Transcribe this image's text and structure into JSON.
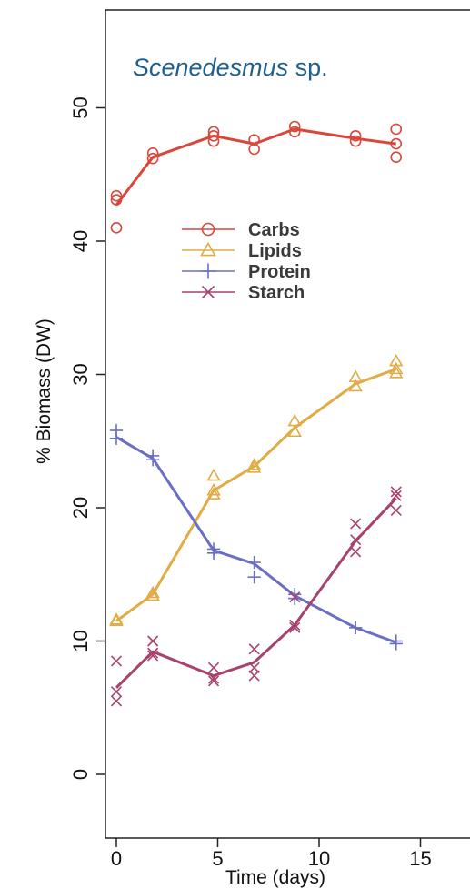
{
  "chart_data": {
    "type": "line",
    "title_species": "Scenedesmus",
    "title_suffix": " sp.",
    "xlabel": "Time (days)",
    "ylabel": "% Biomass (DW)",
    "xlim": [
      -0.5,
      17.5
    ],
    "ylim": [
      -2,
      56
    ],
    "x_ticks": [
      0,
      5,
      10,
      15
    ],
    "y_ticks": [
      0,
      10,
      20,
      30,
      40,
      50
    ],
    "grid": false,
    "legend_position": "upper-left (inside plot)",
    "series": [
      {
        "name": "Carbs",
        "marker": "circle",
        "color": "#d9473a",
        "line_x": [
          0,
          1.8,
          4.8,
          6.8,
          8.8,
          11.8,
          13.8
        ],
        "line_y": [
          42.7,
          46.3,
          47.9,
          47.3,
          48.4,
          47.7,
          47.3
        ],
        "points": [
          [
            0,
            43.4
          ],
          [
            0,
            43.1
          ],
          [
            0,
            41.0
          ],
          [
            1.8,
            46.6
          ],
          [
            1.8,
            46.2
          ],
          [
            4.8,
            48.2
          ],
          [
            4.8,
            47.9
          ],
          [
            4.8,
            47.5
          ],
          [
            6.8,
            47.6
          ],
          [
            6.8,
            46.9
          ],
          [
            8.8,
            48.6
          ],
          [
            8.8,
            48.2
          ],
          [
            11.8,
            47.9
          ],
          [
            11.8,
            47.5
          ],
          [
            13.8,
            48.4
          ],
          [
            13.8,
            47.3
          ],
          [
            13.8,
            46.3
          ]
        ]
      },
      {
        "name": "Lipids",
        "marker": "triangle",
        "color": "#e0ac45",
        "line_x": [
          0,
          1.8,
          4.8,
          6.8,
          8.8,
          11.8,
          13.8
        ],
        "line_y": [
          11.5,
          13.5,
          21.3,
          23.1,
          26.0,
          29.3,
          30.4
        ],
        "points": [
          [
            0,
            11.6
          ],
          [
            0,
            11.5
          ],
          [
            1.8,
            13.6
          ],
          [
            1.8,
            13.4
          ],
          [
            4.8,
            22.4
          ],
          [
            4.8,
            21.3
          ],
          [
            4.8,
            21.0
          ],
          [
            6.8,
            23.2
          ],
          [
            6.8,
            23.0
          ],
          [
            8.8,
            26.5
          ],
          [
            8.8,
            25.7
          ],
          [
            11.8,
            29.8
          ],
          [
            11.8,
            29.1
          ],
          [
            13.8,
            31.0
          ],
          [
            13.8,
            30.4
          ],
          [
            13.8,
            30.1
          ]
        ]
      },
      {
        "name": "Protein",
        "marker": "plus",
        "color": "#6b6fc2",
        "line_x": [
          0,
          1.8,
          4.8,
          6.8,
          8.8,
          11.8,
          13.8
        ],
        "line_y": [
          25.3,
          23.7,
          16.8,
          15.8,
          13.4,
          11.0,
          9.9
        ],
        "points": [
          [
            0,
            25.8
          ],
          [
            0,
            25.2
          ],
          [
            1.8,
            23.9
          ],
          [
            1.8,
            23.6
          ],
          [
            4.8,
            16.9
          ],
          [
            4.8,
            16.6
          ],
          [
            6.8,
            15.9
          ],
          [
            6.8,
            14.8
          ],
          [
            8.8,
            13.5
          ],
          [
            8.8,
            13.2
          ],
          [
            11.8,
            11.0
          ],
          [
            13.8,
            10.0
          ],
          [
            13.8,
            9.8
          ]
        ]
      },
      {
        "name": "Starch",
        "marker": "x",
        "color": "#a6436e",
        "line_x": [
          0,
          1.8,
          4.8,
          6.8,
          8.8,
          11.8,
          13.8
        ],
        "line_y": [
          6.5,
          9.2,
          7.4,
          8.4,
          11.2,
          17.5,
          20.7
        ],
        "points": [
          [
            0,
            8.5
          ],
          [
            0,
            6.2
          ],
          [
            0,
            5.5
          ],
          [
            1.8,
            10.0
          ],
          [
            1.8,
            9.1
          ],
          [
            1.8,
            8.9
          ],
          [
            4.8,
            8.0
          ],
          [
            4.8,
            7.2
          ],
          [
            4.8,
            7.0
          ],
          [
            6.8,
            9.4
          ],
          [
            6.8,
            8.0
          ],
          [
            6.8,
            7.4
          ],
          [
            8.8,
            13.3
          ],
          [
            8.8,
            11.2
          ],
          [
            8.8,
            11.0
          ],
          [
            11.8,
            18.8
          ],
          [
            11.8,
            17.6
          ],
          [
            11.8,
            16.7
          ],
          [
            13.8,
            21.2
          ],
          [
            13.8,
            20.9
          ],
          [
            13.8,
            19.8
          ]
        ]
      }
    ]
  }
}
